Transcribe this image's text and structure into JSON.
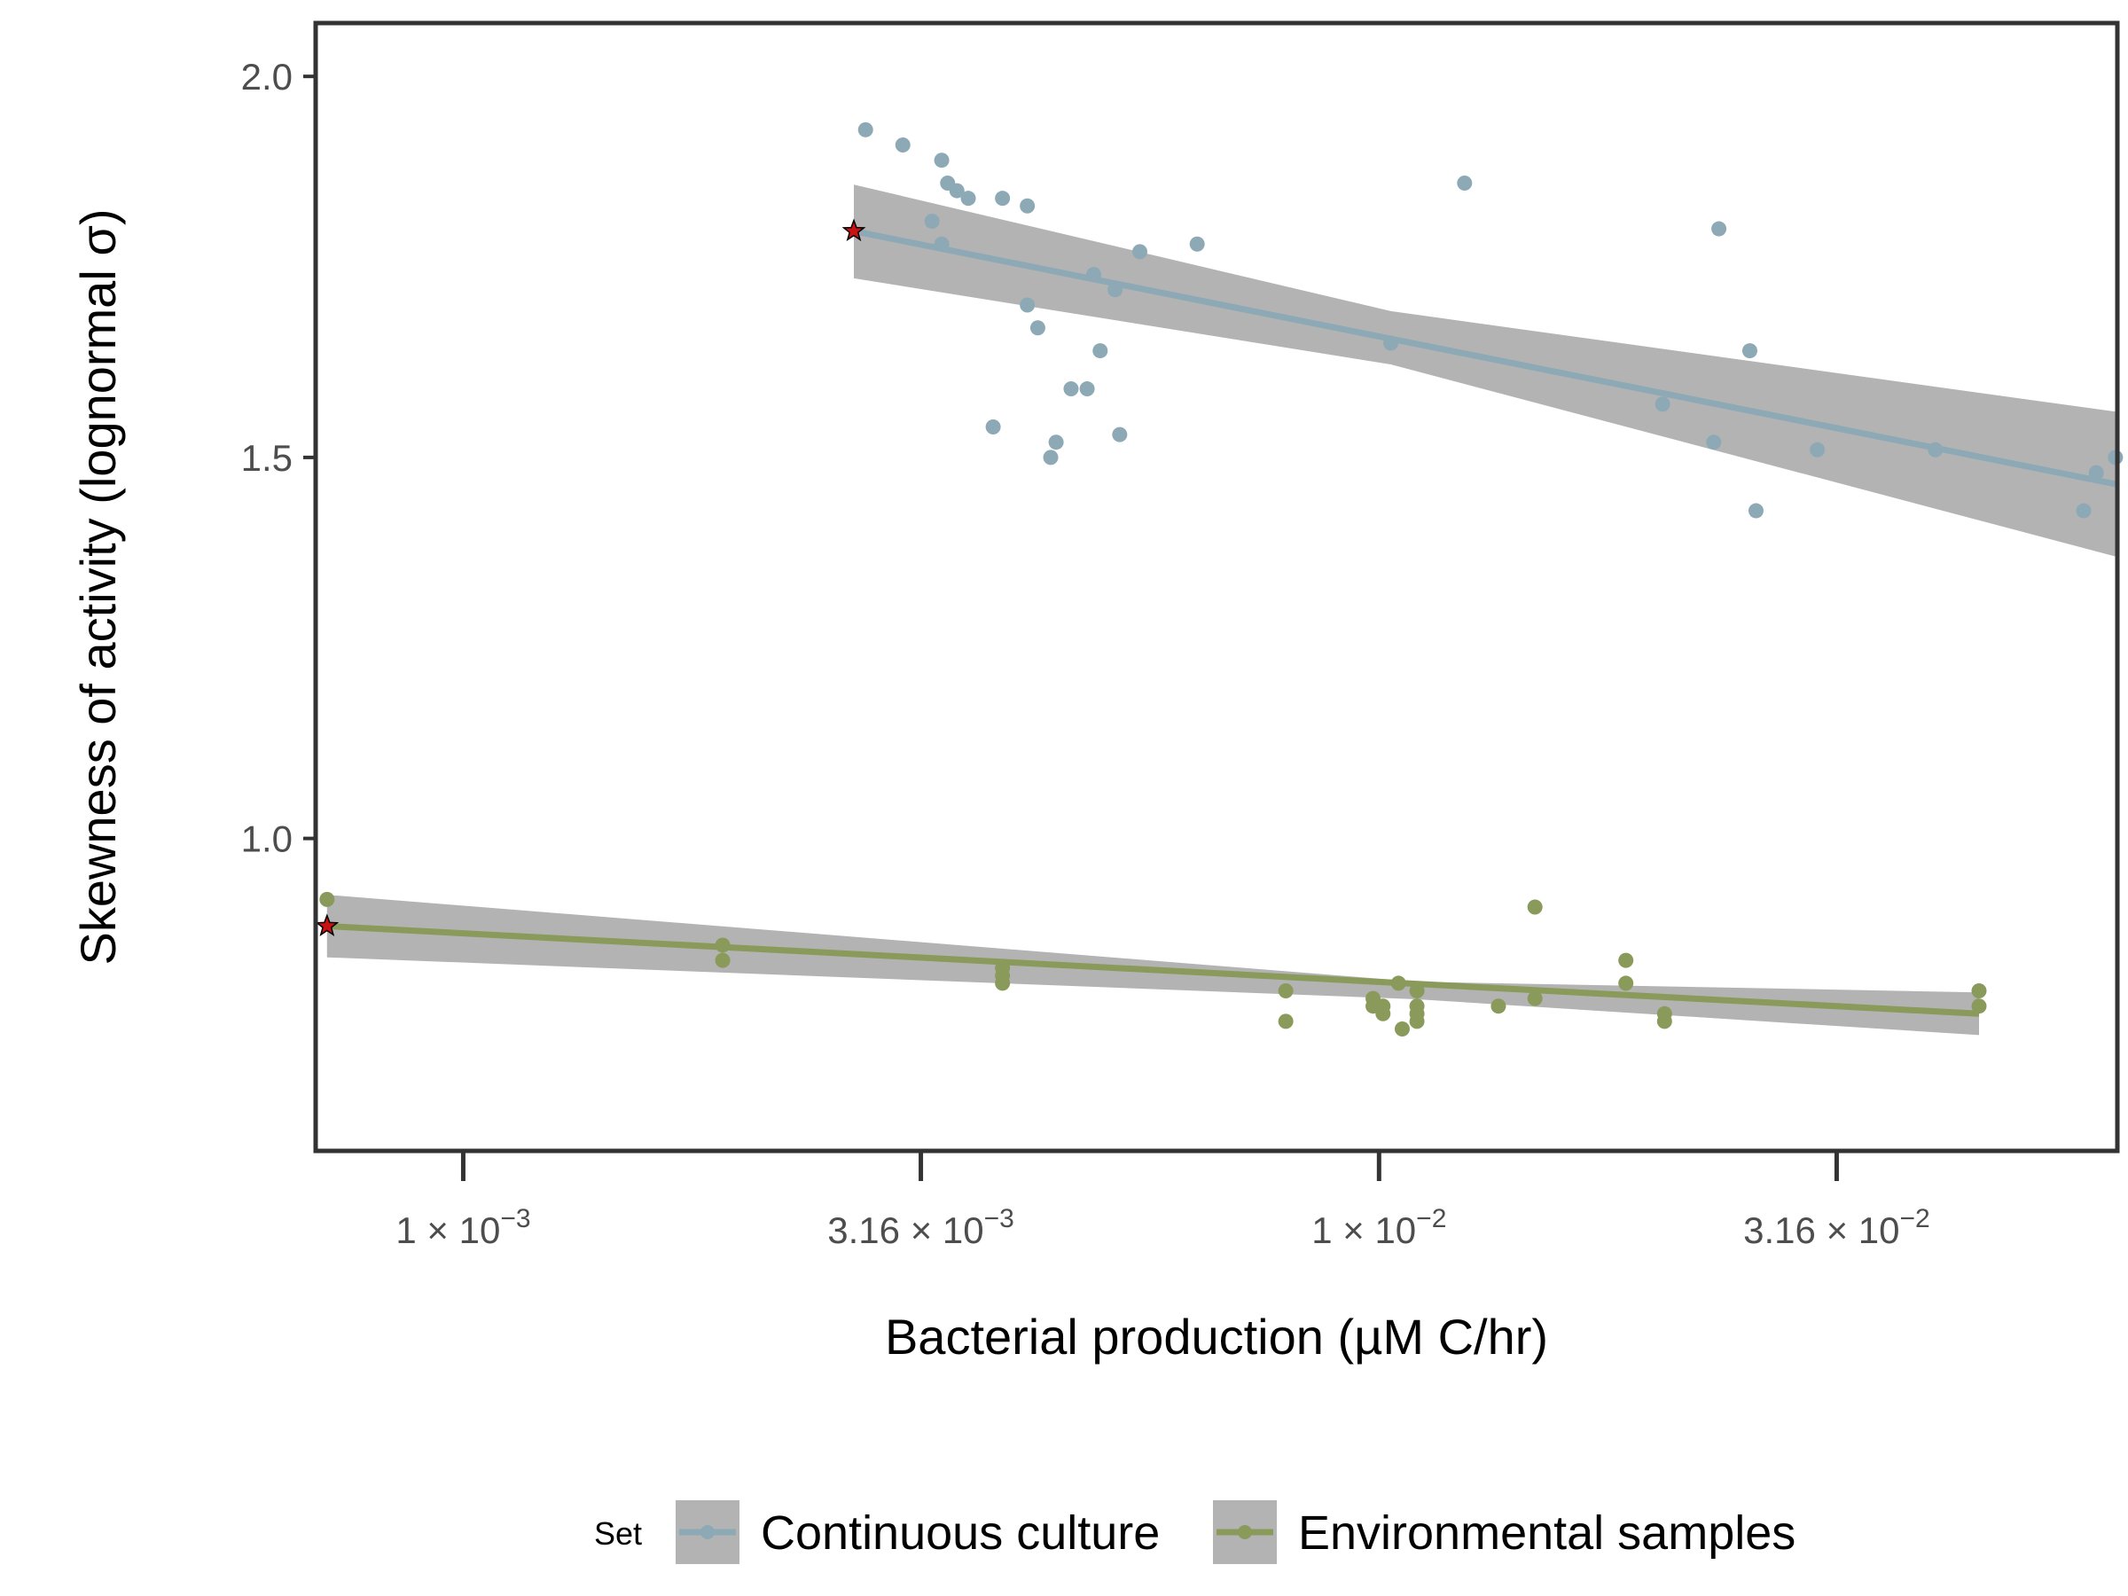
{
  "chart_data": {
    "type": "scatter",
    "title": "",
    "xlabel": "Bacterial production (µM C/hr)",
    "ylabel": "Skewness of activity (lognormal σ)",
    "x_scale": "log10",
    "xlim": [
      0.00069,
      0.064
    ],
    "ylim": [
      0.59,
      2.07
    ],
    "x_ticks": [
      {
        "value": 0.001,
        "mantissa": "1",
        "exponent": "−3"
      },
      {
        "value": 0.00316,
        "mantissa": "3.16",
        "exponent": "−3"
      },
      {
        "value": 0.01,
        "mantissa": "1",
        "exponent": "−2"
      },
      {
        "value": 0.0316,
        "mantissa": "3.16",
        "exponent": "−2"
      }
    ],
    "times_symbol": "×",
    "y_ticks": [
      {
        "value": 1.0,
        "label": "1.0"
      },
      {
        "value": 1.5,
        "label": "1.5"
      },
      {
        "value": 2.0,
        "label": "2.0"
      }
    ],
    "grid": false,
    "legend": {
      "title": "Set",
      "position": "bottom",
      "ribbon_color": "#b3b3b3"
    },
    "series": [
      {
        "name": "Continuous culture",
        "color": "#8da9b6",
        "points": [
          [
            0.00275,
            1.93
          ],
          [
            0.00302,
            1.91
          ],
          [
            0.00333,
            1.89
          ],
          [
            0.00338,
            1.86
          ],
          [
            0.00346,
            1.85
          ],
          [
            0.00325,
            1.81
          ],
          [
            0.00356,
            1.84
          ],
          [
            0.00388,
            1.84
          ],
          [
            0.00413,
            1.83
          ],
          [
            0.00333,
            1.78
          ],
          [
            0.00488,
            1.74
          ],
          [
            0.00515,
            1.72
          ],
          [
            0.00548,
            1.77
          ],
          [
            0.00633,
            1.78
          ],
          [
            0.00413,
            1.7
          ],
          [
            0.00424,
            1.67
          ],
          [
            0.00496,
            1.64
          ],
          [
            0.00461,
            1.59
          ],
          [
            0.0048,
            1.59
          ],
          [
            0.00379,
            1.54
          ],
          [
            0.00444,
            1.52
          ],
          [
            0.00438,
            1.5
          ],
          [
            0.00521,
            1.53
          ],
          [
            0.0103,
            1.65
          ],
          [
            0.0124,
            1.86
          ],
          [
            0.0204,
            1.57
          ],
          [
            0.0232,
            1.52
          ],
          [
            0.0235,
            1.8
          ],
          [
            0.0254,
            1.64
          ],
          [
            0.0258,
            1.43
          ],
          [
            0.0301,
            1.51
          ],
          [
            0.0405,
            1.51
          ],
          [
            0.0588,
            1.43
          ],
          [
            0.0607,
            1.48
          ],
          [
            0.0637,
            1.5
          ]
        ],
        "fit": {
          "x": [
            0.00267,
            0.0637
          ],
          "y": [
            1.797,
            1.465
          ]
        },
        "band": {
          "x": [
            0.00267,
            0.0103,
            0.0637
          ],
          "lower": [
            1.735,
            1.622,
            1.37
          ],
          "upper": [
            1.858,
            1.692,
            1.56
          ]
        },
        "highlight": [
          0.00267,
          1.797
        ]
      },
      {
        "name": "Environmental samples",
        "color": "#8a9a5b",
        "points": [
          [
            0.00071,
            0.92
          ],
          [
            0.00192,
            0.86
          ],
          [
            0.00192,
            0.84
          ],
          [
            0.00388,
            0.83
          ],
          [
            0.00388,
            0.81
          ],
          [
            0.00388,
            0.82
          ],
          [
            0.00791,
            0.8
          ],
          [
            0.00791,
            0.76
          ],
          [
            0.00985,
            0.79
          ],
          [
            0.00985,
            0.78
          ],
          [
            0.0101,
            0.78
          ],
          [
            0.0101,
            0.77
          ],
          [
            0.0105,
            0.81
          ],
          [
            0.0106,
            0.75
          ],
          [
            0.011,
            0.76
          ],
          [
            0.011,
            0.78
          ],
          [
            0.011,
            0.8
          ],
          [
            0.011,
            0.77
          ],
          [
            0.0135,
            0.78
          ],
          [
            0.0148,
            0.79
          ],
          [
            0.0148,
            0.91
          ],
          [
            0.0186,
            0.84
          ],
          [
            0.0186,
            0.81
          ],
          [
            0.0205,
            0.77
          ],
          [
            0.0205,
            0.76
          ],
          [
            0.0452,
            0.8
          ],
          [
            0.0452,
            0.78
          ]
        ],
        "fit": {
          "x": [
            0.00071,
            0.0452
          ],
          "y": [
            0.885,
            0.77
          ]
        },
        "band": {
          "x": [
            0.00071,
            0.011,
            0.0452
          ],
          "lower": [
            0.844,
            0.789,
            0.742
          ],
          "upper": [
            0.926,
            0.812,
            0.798
          ]
        },
        "highlight": [
          0.00071,
          0.885
        ]
      }
    ]
  }
}
